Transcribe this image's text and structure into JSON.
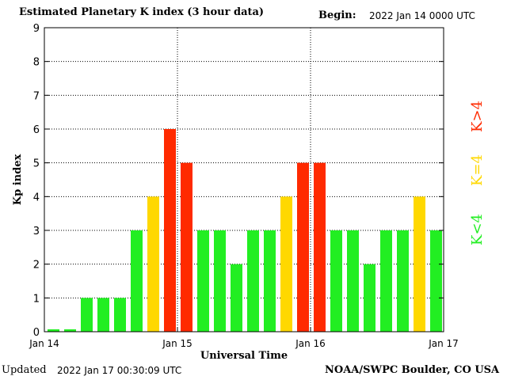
{
  "header": {
    "title": "Estimated Planetary K index (3 hour data)",
    "begin_label": "Begin:",
    "begin_value": "2022 Jan 14 0000 UTC"
  },
  "footer": {
    "updated_label": "Updated",
    "updated_value": "2022 Jan 17 00:30:09 UTC",
    "credit": "NOAA/SWPC Boulder, CO USA"
  },
  "legend": {
    "low": "K<4",
    "mid": "K=4",
    "high": "K>4"
  },
  "colors": {
    "low": "#22ee22",
    "mid": "#ffd800",
    "high": "#ff2a00",
    "grid": "#000000"
  },
  "chart_data": {
    "type": "bar",
    "xlabel": "Universal Time",
    "ylabel": "Kp index",
    "ylim": [
      0,
      9
    ],
    "yticks": [
      "0",
      "1",
      "2",
      "3",
      "4",
      "5",
      "6",
      "7",
      "8",
      "9"
    ],
    "xticks": [
      "Jan 14",
      "Jan 15",
      "Jan 16",
      "Jan 17"
    ],
    "grid": true,
    "values": [
      0,
      0,
      1,
      1,
      1,
      3,
      4,
      6,
      5,
      3,
      3,
      2,
      3,
      3,
      4,
      5,
      5,
      3,
      3,
      2,
      3,
      3,
      4,
      3
    ]
  }
}
